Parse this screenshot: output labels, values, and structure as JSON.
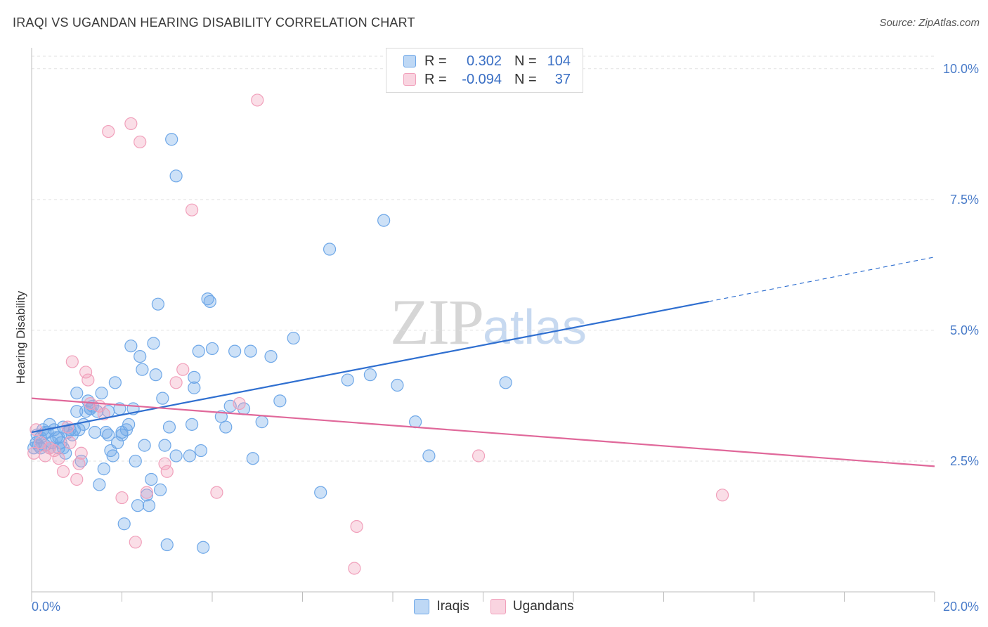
{
  "title": "IRAQI VS UGANDAN HEARING DISABILITY CORRELATION CHART",
  "source": "Source: ZipAtlas.com",
  "watermark": {
    "zip": "ZIP",
    "atlas": "atlas"
  },
  "legend": {
    "rows": [
      {
        "r_label": "R =",
        "r_value": "0.302",
        "n_label": "N =",
        "n_value": "104",
        "color": "#6fa8e8"
      },
      {
        "r_label": "R =",
        "r_value": "-0.094",
        "n_label": "N =",
        "n_value": "37",
        "color": "#f1a0bb"
      }
    ]
  },
  "bottom_legend": [
    {
      "label": "Iraqis",
      "color": "#6fa8e8"
    },
    {
      "label": "Ugandans",
      "color": "#f1a0bb"
    }
  ],
  "chart_data": {
    "type": "scatter",
    "title": "IRAQI VS UGANDAN HEARING DISABILITY CORRELATION CHART",
    "xlabel": "",
    "ylabel": "Hearing Disability",
    "xlim": [
      0,
      20
    ],
    "ylim": [
      0,
      10.4
    ],
    "x_tick_labels": [
      "0.0%",
      "20.0%"
    ],
    "y_ticks": [
      2.5,
      5.0,
      7.5,
      10.0
    ],
    "y_tick_labels": [
      "2.5%",
      "5.0%",
      "7.5%",
      "10.0%"
    ],
    "grid": true,
    "legend_placement": "top-center",
    "series": [
      {
        "name": "Iraqis",
        "color": "#6fa8e8",
        "trend": {
          "x0": 0,
          "y0": 3.05,
          "x1": 15.0,
          "y1": 5.55,
          "dash_to_x": 20.0,
          "dash_to_y": 6.4
        },
        "points": [
          [
            0.05,
            2.75
          ],
          [
            0.1,
            2.85
          ],
          [
            0.12,
            3.0
          ],
          [
            0.15,
            2.8
          ],
          [
            0.2,
            2.75
          ],
          [
            0.25,
            3.1
          ],
          [
            0.3,
            2.8
          ],
          [
            0.35,
            3.05
          ],
          [
            0.4,
            3.2
          ],
          [
            0.45,
            2.85
          ],
          [
            0.5,
            3.1
          ],
          [
            0.55,
            2.95
          ],
          [
            0.6,
            2.75
          ],
          [
            0.65,
            2.85
          ],
          [
            0.7,
            3.15
          ],
          [
            0.75,
            2.65
          ],
          [
            0.8,
            3.05
          ],
          [
            0.85,
            3.1
          ],
          [
            0.9,
            3.0
          ],
          [
            0.95,
            3.1
          ],
          [
            1.0,
            3.45
          ],
          [
            1.0,
            3.8
          ],
          [
            1.05,
            3.1
          ],
          [
            1.1,
            2.5
          ],
          [
            1.15,
            3.2
          ],
          [
            1.2,
            3.45
          ],
          [
            1.25,
            3.65
          ],
          [
            1.3,
            3.5
          ],
          [
            1.35,
            3.55
          ],
          [
            1.4,
            3.05
          ],
          [
            1.45,
            3.45
          ],
          [
            1.5,
            2.05
          ],
          [
            1.55,
            3.8
          ],
          [
            1.6,
            2.35
          ],
          [
            1.65,
            3.05
          ],
          [
            1.7,
            3.0
          ],
          [
            1.75,
            2.7
          ],
          [
            1.8,
            2.6
          ],
          [
            1.85,
            4.0
          ],
          [
            1.9,
            2.85
          ],
          [
            1.95,
            3.5
          ],
          [
            2.0,
            3.05
          ],
          [
            2.05,
            1.3
          ],
          [
            2.1,
            3.1
          ],
          [
            2.15,
            3.2
          ],
          [
            2.2,
            4.7
          ],
          [
            2.25,
            3.5
          ],
          [
            2.3,
            2.5
          ],
          [
            2.35,
            1.65
          ],
          [
            2.4,
            4.5
          ],
          [
            2.45,
            4.25
          ],
          [
            2.5,
            2.8
          ],
          [
            2.55,
            1.85
          ],
          [
            2.6,
            1.65
          ],
          [
            2.65,
            2.15
          ],
          [
            2.7,
            4.75
          ],
          [
            2.75,
            4.15
          ],
          [
            2.8,
            5.5
          ],
          [
            2.85,
            1.95
          ],
          [
            2.9,
            3.7
          ],
          [
            2.95,
            2.8
          ],
          [
            3.0,
            0.9
          ],
          [
            3.05,
            3.15
          ],
          [
            3.1,
            8.65
          ],
          [
            3.2,
            7.95
          ],
          [
            3.5,
            2.6
          ],
          [
            3.55,
            3.2
          ],
          [
            3.6,
            4.1
          ],
          [
            3.7,
            4.6
          ],
          [
            3.75,
            2.7
          ],
          [
            3.8,
            0.85
          ],
          [
            3.9,
            5.6
          ],
          [
            3.95,
            5.55
          ],
          [
            4.0,
            4.65
          ],
          [
            4.2,
            3.35
          ],
          [
            4.3,
            3.15
          ],
          [
            4.4,
            3.55
          ],
          [
            4.5,
            4.6
          ],
          [
            4.7,
            3.5
          ],
          [
            4.85,
            4.6
          ],
          [
            4.9,
            2.55
          ],
          [
            5.1,
            3.25
          ],
          [
            5.3,
            4.5
          ],
          [
            5.5,
            3.65
          ],
          [
            5.8,
            4.85
          ],
          [
            6.4,
            1.9
          ],
          [
            6.6,
            6.55
          ],
          [
            7.0,
            4.05
          ],
          [
            7.5,
            4.15
          ],
          [
            7.8,
            7.1
          ],
          [
            8.1,
            3.95
          ],
          [
            8.5,
            3.25
          ],
          [
            8.8,
            2.6
          ],
          [
            10.5,
            4.0
          ],
          [
            3.2,
            2.6
          ],
          [
            1.3,
            3.5
          ],
          [
            0.4,
            2.75
          ],
          [
            0.6,
            2.95
          ],
          [
            0.7,
            2.75
          ],
          [
            2.0,
            3.0
          ],
          [
            1.7,
            3.45
          ],
          [
            3.6,
            3.9
          ],
          [
            0.3,
            3.05
          ],
          [
            0.2,
            2.95
          ]
        ]
      },
      {
        "name": "Ugandans",
        "color": "#f1a0bb",
        "trend": {
          "x0": 0,
          "y0": 3.7,
          "x1": 20.0,
          "y1": 2.4
        },
        "points": [
          [
            0.05,
            2.65
          ],
          [
            0.1,
            3.1
          ],
          [
            0.2,
            2.85
          ],
          [
            0.3,
            2.6
          ],
          [
            0.4,
            2.75
          ],
          [
            0.5,
            2.7
          ],
          [
            0.6,
            2.55
          ],
          [
            0.7,
            2.3
          ],
          [
            0.8,
            3.15
          ],
          [
            0.85,
            2.85
          ],
          [
            0.9,
            4.4
          ],
          [
            1.0,
            2.15
          ],
          [
            1.05,
            2.45
          ],
          [
            1.1,
            2.65
          ],
          [
            1.2,
            4.2
          ],
          [
            1.25,
            4.05
          ],
          [
            1.3,
            3.6
          ],
          [
            1.5,
            3.55
          ],
          [
            1.6,
            3.4
          ],
          [
            1.7,
            8.8
          ],
          [
            2.0,
            1.8
          ],
          [
            2.2,
            8.95
          ],
          [
            2.3,
            0.95
          ],
          [
            2.4,
            8.6
          ],
          [
            2.55,
            1.9
          ],
          [
            2.95,
            2.45
          ],
          [
            3.0,
            2.3
          ],
          [
            3.2,
            4.0
          ],
          [
            3.35,
            4.25
          ],
          [
            3.55,
            7.3
          ],
          [
            4.1,
            1.9
          ],
          [
            4.6,
            3.6
          ],
          [
            5.0,
            9.4
          ],
          [
            7.2,
            1.25
          ],
          [
            7.15,
            0.45
          ],
          [
            9.9,
            2.6
          ],
          [
            15.3,
            1.85
          ]
        ]
      }
    ]
  }
}
